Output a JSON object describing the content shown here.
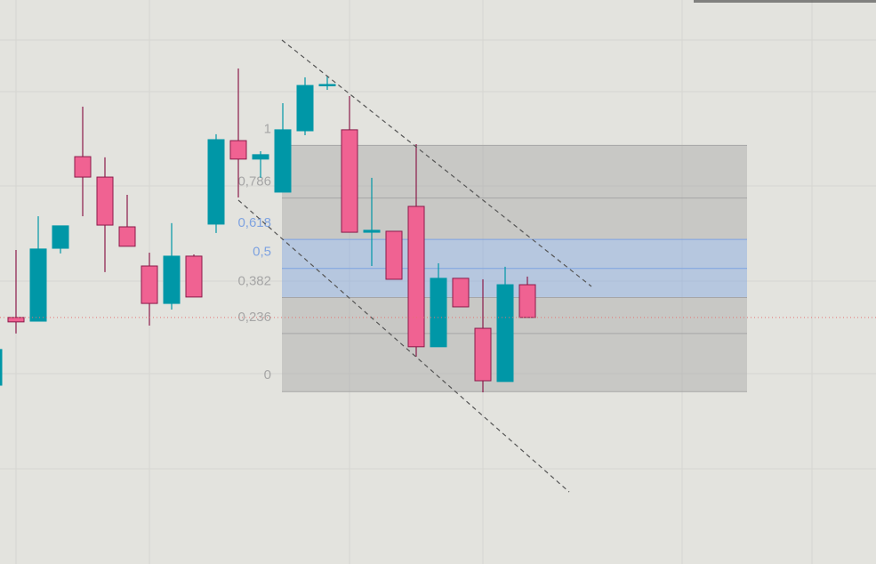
{
  "chart_data": {
    "type": "candlestick",
    "categories": [
      null,
      null,
      null,
      null,
      null,
      null,
      null,
      null,
      null,
      null,
      null,
      null,
      null,
      null,
      null,
      null,
      null,
      null,
      null,
      null,
      null,
      null,
      null,
      null,
      null
    ],
    "open": [
      0.026,
      0.301,
      0.286,
      0.582,
      0.954,
      0.871,
      0.669,
      0.51,
      0.358,
      0.55,
      0.68,
      1.019,
      0.944,
      0.81,
      1.059,
      1.243,
      1.063,
      0.647,
      0.651,
      0.752,
      0.182,
      0.46,
      0.257,
      0.041,
      0.434
    ],
    "high": [
      0.171,
      0.575,
      0.712,
      0.673,
      1.157,
      0.951,
      0.799,
      0.564,
      0.684,
      0.557,
      1.045,
      1.312,
      0.976,
      1.171,
      1.276,
      1.279,
      1.2,
      0.868,
      0.651,
      1.005,
      0.521,
      0.46,
      0.456,
      0.507,
      0.467
    ],
    "low": [
      0.026,
      0.236,
      0.286,
      0.561,
      0.712,
      0.485,
      0.59,
      0.268,
      0.333,
      0.384,
      0.644,
      0.788,
      0.868,
      0.81,
      1.041,
      1.225,
      0.647,
      0.51,
      0.456,
      0.142,
      0.182,
      0.344,
      -0.003,
      0.041,
      0.301
    ],
    "close": [
      0.171,
      0.283,
      0.579,
      0.673,
      0.871,
      0.676,
      0.59,
      0.358,
      0.55,
      0.384,
      1.023,
      0.944,
      0.962,
      1.063,
      1.243,
      1.247,
      0.647,
      0.655,
      0.456,
      0.182,
      0.46,
      0.344,
      0.044,
      0.434,
      0.301
    ],
    "up_color": "#0097a7",
    "down_color": "#f06292",
    "ylim": [
      -0.7,
      1.59
    ],
    "fib_levels": [
      1,
      {
        "value": 0.786,
        "label": "0,786"
      },
      {
        "value": 0.618,
        "label": "0,618"
      },
      {
        "value": 0.5,
        "label": "0,5"
      },
      {
        "value": 0.382,
        "label": "0,382"
      },
      {
        "value": 0.236,
        "label": "0,236"
      },
      0
    ],
    "fib_colors": [
      "#a6a6a6",
      "#a6a6a6",
      "#7fa3e0",
      "#7fa3e0",
      "#a6a6a6",
      "#a6a6a6",
      "#a6a6a6"
    ],
    "price_line_color": "#e57373"
  }
}
